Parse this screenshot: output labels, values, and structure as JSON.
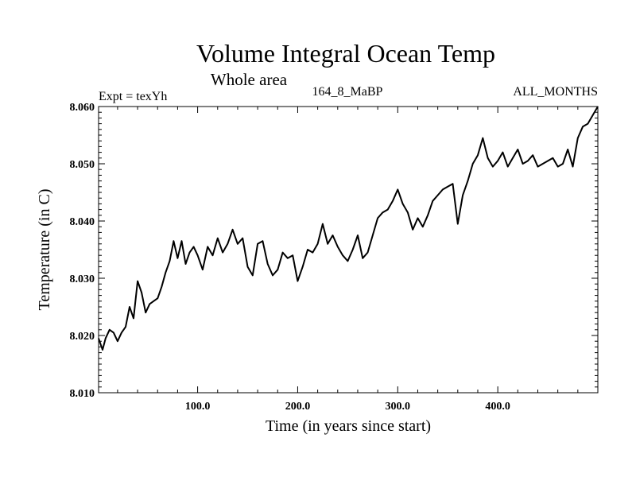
{
  "chart_data": {
    "type": "line",
    "title": "Volume Integral Ocean Temp",
    "subtitle": "Whole area",
    "expt_label": "Expt = texYh",
    "run_label": "164_8_MaBP",
    "months_label": "ALL_MONTHS",
    "xlabel": "Time (in years since start)",
    "ylabel": "Temperature (in C)",
    "xlim": [
      1,
      500
    ],
    "ylim": [
      8.01,
      8.06
    ],
    "x_ticks": [
      {
        "value": 100,
        "label": "100.0"
      },
      {
        "value": 200,
        "label": "200.0"
      },
      {
        "value": 300,
        "label": "300.0"
      },
      {
        "value": 400,
        "label": "400.0"
      }
    ],
    "y_ticks": [
      {
        "value": 8.01,
        "label": "8.010"
      },
      {
        "value": 8.02,
        "label": "8.020"
      },
      {
        "value": 8.03,
        "label": "8.030"
      },
      {
        "value": 8.04,
        "label": "8.040"
      },
      {
        "value": 8.05,
        "label": "8.050"
      },
      {
        "value": 8.06,
        "label": "8.060"
      }
    ],
    "grid": false,
    "series": [
      {
        "color": "#000000",
        "x": [
          1,
          5,
          8,
          12,
          16,
          20,
          24,
          28,
          32,
          36,
          40,
          44,
          48,
          52,
          56,
          60,
          64,
          68,
          72,
          76,
          80,
          84,
          88,
          92,
          96,
          100,
          105,
          110,
          115,
          120,
          125,
          130,
          135,
          140,
          145,
          150,
          155,
          160,
          165,
          170,
          175,
          180,
          185,
          190,
          195,
          200,
          205,
          210,
          215,
          220,
          225,
          230,
          235,
          240,
          245,
          250,
          255,
          260,
          265,
          270,
          275,
          280,
          285,
          290,
          295,
          300,
          305,
          310,
          315,
          320,
          325,
          330,
          335,
          340,
          345,
          350,
          355,
          360,
          365,
          370,
          375,
          380,
          385,
          390,
          395,
          400,
          405,
          410,
          415,
          420,
          425,
          430,
          435,
          440,
          445,
          450,
          455,
          460,
          465,
          470,
          475,
          480,
          485,
          490,
          495,
          500
        ],
        "y": [
          8.0195,
          8.0175,
          8.0195,
          8.021,
          8.0205,
          8.019,
          8.0205,
          8.0215,
          8.025,
          8.023,
          8.0295,
          8.0275,
          8.024,
          8.0255,
          8.026,
          8.0265,
          8.0285,
          8.031,
          8.033,
          8.0365,
          8.0335,
          8.0365,
          8.0325,
          8.0345,
          8.0355,
          8.034,
          8.0315,
          8.0355,
          8.034,
          8.037,
          8.0345,
          8.036,
          8.0385,
          8.036,
          8.037,
          8.032,
          8.0305,
          8.036,
          8.0365,
          8.0325,
          8.0305,
          8.0315,
          8.0345,
          8.0335,
          8.034,
          8.0295,
          8.032,
          8.035,
          8.0345,
          8.036,
          8.0395,
          8.036,
          8.0375,
          8.0355,
          8.034,
          8.033,
          8.035,
          8.0375,
          8.0335,
          8.0345,
          8.0375,
          8.0405,
          8.0415,
          8.042,
          8.0435,
          8.0455,
          8.043,
          8.0415,
          8.0385,
          8.0405,
          8.039,
          8.041,
          8.0435,
          8.0445,
          8.0455,
          8.046,
          8.0465,
          8.0395,
          8.0445,
          8.047,
          8.05,
          8.0515,
          8.0545,
          8.051,
          8.0495,
          8.0505,
          8.052,
          8.0495,
          8.051,
          8.0525,
          8.05,
          8.0505,
          8.0515,
          8.0495,
          8.05,
          8.0505,
          8.051,
          8.0495,
          8.05,
          8.0525,
          8.0495,
          8.0545,
          8.0565,
          8.057,
          8.0585,
          8.06
        ]
      }
    ]
  }
}
